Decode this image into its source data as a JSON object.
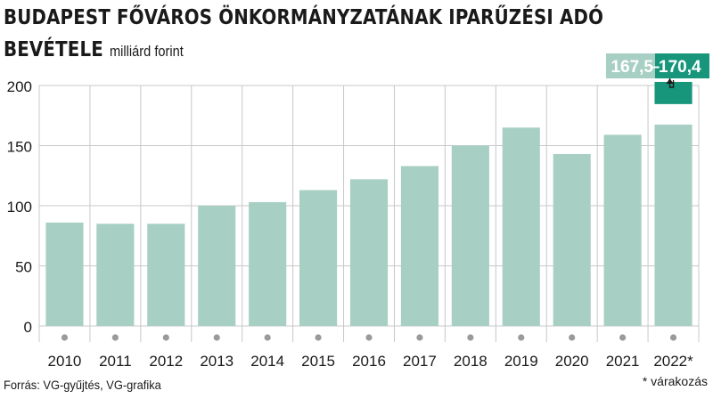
{
  "title_line1": "BUDAPEST FŐVÁROS ÖNKORMÁNYZATÁNAK IPARŰZÉSI ADÓ",
  "title_line2": "BEVÉTELE",
  "unit": "milliárd forint",
  "source": "Forrás: VG-gyűjtés, VG-grafika",
  "footnote": "* várakozás",
  "colors": {
    "bar": "#a8cfc4",
    "estimate_top": "#17967c",
    "grid": "#c8c8c8",
    "dot": "#9a9a9a"
  },
  "chart_data": {
    "type": "bar",
    "title": "BUDAPEST FŐVÁROS ÖNKORMÁNYZATÁNAK IPARŰZÉSI ADÓ BEVÉTELE",
    "ylabel": "milliárd forint",
    "ylim": [
      0,
      200
    ],
    "yticks": [
      0,
      50,
      100,
      150,
      200
    ],
    "grid": true,
    "categories": [
      "2010",
      "2011",
      "2012",
      "2013",
      "2014",
      "2015",
      "2016",
      "2017",
      "2018",
      "2019",
      "2020",
      "2021",
      "2022*"
    ],
    "values": [
      86,
      85,
      85,
      100,
      103,
      113,
      122,
      133,
      150,
      165,
      143,
      159,
      167.5
    ],
    "estimate": {
      "category": "2022*",
      "low": 167.5,
      "high": 170.4,
      "label_low": "167,5",
      "label_sep": "–",
      "label_high": "170,4"
    }
  }
}
